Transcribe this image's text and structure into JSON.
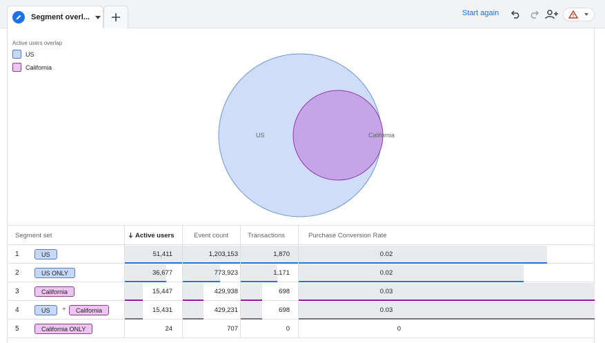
{
  "tab": {
    "label": "Segment overl...",
    "icon": "pencil-icon"
  },
  "toolbar": {
    "start_again": "Start again"
  },
  "legend": {
    "title": "Active users overlap",
    "items": [
      {
        "label": "US",
        "color": "#c6d8f7"
      },
      {
        "label": "California",
        "color": "#edc6ef"
      }
    ]
  },
  "venn": {
    "us_label": "US",
    "ca_label": "California",
    "us_fill": "#cfddf8",
    "ca_fill": "#c3a5e8"
  },
  "table": {
    "headers": [
      "Segment set",
      "Active users",
      "Event count",
      "Transactions",
      "Purchase Conversion Rate"
    ],
    "rows": [
      {
        "num": "1",
        "segments": [
          "US"
        ],
        "active_users": "51,411",
        "event_count": "1,203,153",
        "transactions": "1,870",
        "conversion": "0.02"
      },
      {
        "num": "2",
        "segments": [
          "US ONLY"
        ],
        "active_users": "36,677",
        "event_count": "773,923",
        "transactions": "1,171",
        "conversion": "0.02"
      },
      {
        "num": "3",
        "segments": [
          "California"
        ],
        "active_users": "15,447",
        "event_count": "429,938",
        "transactions": "698",
        "conversion": "0.03"
      },
      {
        "num": "4",
        "segments": [
          "US",
          "California"
        ],
        "plus": "+",
        "active_users": "15,431",
        "event_count": "429,231",
        "transactions": "698",
        "conversion": "0.03"
      },
      {
        "num": "5",
        "segments": [
          "California ONLY"
        ],
        "active_users": "24",
        "event_count": "707",
        "transactions": "0",
        "conversion": "0"
      }
    ]
  }
}
